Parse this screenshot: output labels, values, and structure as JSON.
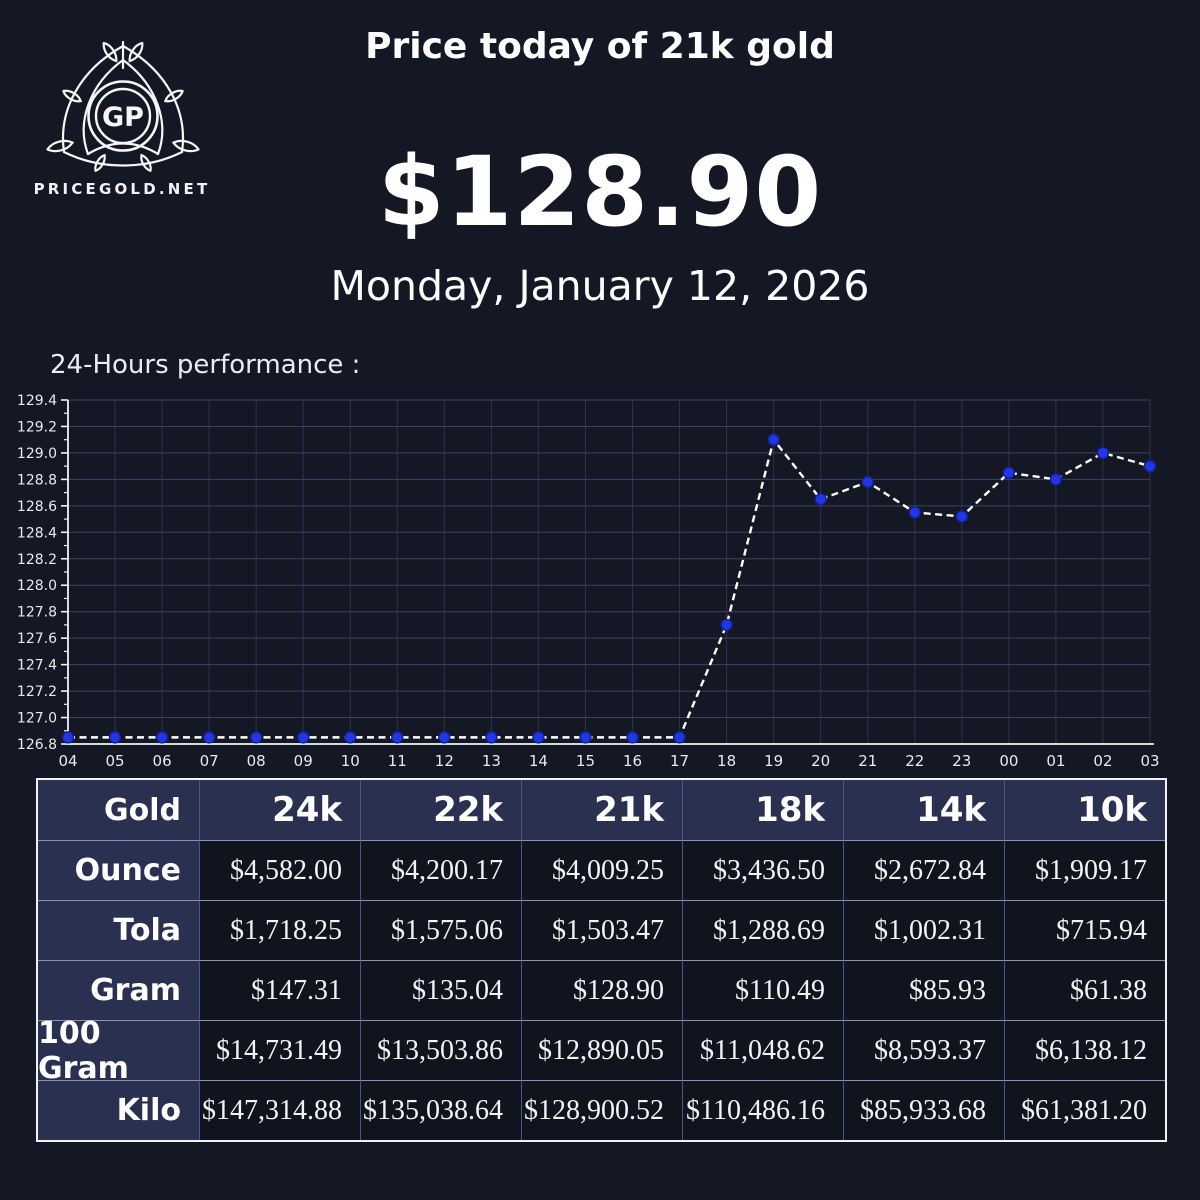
{
  "brand": {
    "monogram": "GP",
    "site": "PRICEGOLD.NET"
  },
  "header": {
    "title": "Price today of 21k gold",
    "price": "$128.90",
    "date": "Monday, January 12, 2026"
  },
  "chart_section": {
    "heading": "24-Hours performance :"
  },
  "chart_data": {
    "type": "line",
    "title": "24-Hours performance :",
    "x": [
      "04",
      "05",
      "06",
      "07",
      "08",
      "09",
      "10",
      "11",
      "12",
      "13",
      "14",
      "15",
      "16",
      "17",
      "18",
      "19",
      "20",
      "21",
      "22",
      "23",
      "00",
      "01",
      "02",
      "03"
    ],
    "values": [
      126.85,
      126.85,
      126.85,
      126.85,
      126.85,
      126.85,
      126.85,
      126.85,
      126.85,
      126.85,
      126.85,
      126.85,
      126.85,
      126.85,
      127.7,
      129.1,
      128.65,
      128.78,
      128.55,
      128.52,
      128.85,
      128.8,
      129.0,
      128.9
    ],
    "ylim": [
      126.8,
      129.4
    ],
    "yticks": [
      "126.8",
      "127.0",
      "127.2",
      "127.4",
      "127.6",
      "127.8",
      "128.0",
      "128.2",
      "128.4",
      "128.6",
      "128.8",
      "129.0",
      "129.2",
      "129.4"
    ],
    "xlabel": "",
    "ylabel": "",
    "grid": true,
    "legend": "none",
    "line_style": "white-dashed",
    "marker": "blue-circle"
  },
  "table": {
    "corner_label": "Gold",
    "columns": [
      "24k",
      "22k",
      "21k",
      "18k",
      "14k",
      "10k"
    ],
    "rows": [
      {
        "label": "Ounce",
        "values": [
          "$4,582.00",
          "$4,200.17",
          "$4,009.25",
          "$3,436.50",
          "$2,672.84",
          "$1,909.17"
        ]
      },
      {
        "label": "Tola",
        "values": [
          "$1,718.25",
          "$1,575.06",
          "$1,503.47",
          "$1,288.69",
          "$1,002.31",
          "$715.94"
        ]
      },
      {
        "label": "Gram",
        "values": [
          "$147.31",
          "$135.04",
          "$128.90",
          "$110.49",
          "$85.93",
          "$61.38"
        ]
      },
      {
        "label": "100 Gram",
        "values": [
          "$14,731.49",
          "$13,503.86",
          "$12,890.05",
          "$11,048.62",
          "$8,593.37",
          "$6,138.12"
        ]
      },
      {
        "label": "Kilo",
        "values": [
          "$147,314.88",
          "$135,038.64",
          "$128,900.52",
          "$110,486.16",
          "$85,933.68",
          "$61,381.20"
        ]
      }
    ]
  },
  "colors": {
    "background": "#141824",
    "grid_horizontal": "#3b4361",
    "grid_vertical": "#2c3350",
    "axis": "#f2f3f5",
    "tick_label": "#e8eaee",
    "line": "#ffffff",
    "marker_fill": "#2337e0",
    "marker_edge": "#12209c",
    "table_header_bg": "#2a3150",
    "table_cell_bg": "#10141f",
    "table_border_vertical": "#49568e",
    "table_border_horizontal": "#8a93b4"
  }
}
